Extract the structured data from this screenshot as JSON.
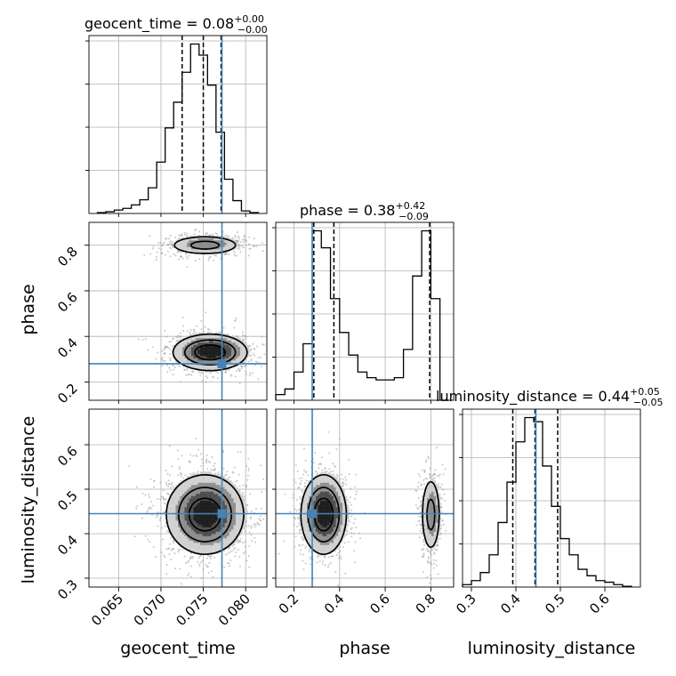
{
  "axis_labels": {
    "geocent_time": "geocent_time",
    "phase": "phase",
    "luminosity_distance": "luminosity_distance"
  },
  "panel_titles": [
    {
      "text": "geocent_time = ",
      "value": "0.08",
      "plus": "+0.00",
      "minus": "−0.00"
    },
    {
      "text": "phase = ",
      "value": "0.38",
      "plus": "+0.42",
      "minus": "−0.09"
    },
    {
      "text": "luminosity_distance = ",
      "value": "0.44",
      "plus": "+0.05",
      "minus": "−0.05"
    }
  ],
  "colors": {
    "truth": "#4682b4",
    "hist": "#000000",
    "contour": "#000000",
    "grid": "#b0b0b0"
  },
  "chart_data": {
    "type": "corner",
    "parameters": [
      "geocent_time",
      "phase",
      "luminosity_distance"
    ],
    "ranges": {
      "geocent_time": [
        0.0615,
        0.0825
      ],
      "phase": [
        0.12,
        0.9
      ],
      "luminosity_distance": [
        0.28,
        0.68
      ]
    },
    "ticks": {
      "geocent_time": [
        0.065,
        0.07,
        0.075,
        0.08
      ],
      "phase": [
        0.2,
        0.4,
        0.6,
        0.8
      ],
      "luminosity_distance": [
        0.3,
        0.4,
        0.5,
        0.6
      ]
    },
    "tick_labels": {
      "geocent_time": [
        "0.065",
        "0.070",
        "0.075",
        "0.080"
      ],
      "phase": [
        "0.2",
        "0.4",
        "0.6",
        "0.8"
      ],
      "luminosity_distance": [
        "0.3",
        "0.4",
        "0.5",
        "0.6"
      ]
    },
    "truths": {
      "geocent_time": 0.0772,
      "phase": 0.28,
      "luminosity_distance": 0.445
    },
    "quantiles": {
      "geocent_time": [
        0.0725,
        0.075,
        0.0771
      ],
      "phase": [
        0.287,
        0.375,
        0.795
      ],
      "luminosity_distance": [
        0.393,
        0.443,
        0.494
      ]
    },
    "histograms": {
      "geocent_time": {
        "edges": [
          0.0625,
          0.0635,
          0.0645,
          0.0655,
          0.0665,
          0.0675,
          0.0685,
          0.0695,
          0.0705,
          0.0715,
          0.0725,
          0.0735,
          0.0745,
          0.0755,
          0.0765,
          0.0775,
          0.0785,
          0.0795,
          0.0805,
          0.0815
        ],
        "counts": [
          1,
          2,
          4,
          6,
          10,
          16,
          30,
          60,
          100,
          130,
          165,
          198,
          185,
          150,
          95,
          40,
          15,
          3,
          1
        ]
      },
      "phase": {
        "edges": [
          0.12,
          0.16,
          0.2,
          0.24,
          0.28,
          0.32,
          0.36,
          0.4,
          0.44,
          0.48,
          0.52,
          0.56,
          0.6,
          0.64,
          0.68,
          0.72,
          0.76,
          0.8,
          0.84,
          0.88
        ],
        "counts": [
          5,
          10,
          25,
          50,
          150,
          135,
          90,
          60,
          40,
          25,
          20,
          18,
          18,
          20,
          45,
          110,
          150,
          90,
          0
        ]
      },
      "luminosity_distance": {
        "edges": [
          0.28,
          0.3,
          0.32,
          0.34,
          0.36,
          0.38,
          0.4,
          0.42,
          0.44,
          0.46,
          0.48,
          0.5,
          0.52,
          0.54,
          0.56,
          0.58,
          0.6,
          0.62,
          0.64,
          0.66
        ],
        "counts": [
          3,
          8,
          18,
          40,
          80,
          130,
          180,
          210,
          205,
          150,
          100,
          60,
          40,
          22,
          14,
          8,
          6,
          3,
          1
        ]
      }
    },
    "panels_2d": [
      {
        "x": "geocent_time",
        "y": "phase",
        "modes": [
          {
            "x": 0.0752,
            "y": 0.8,
            "sx": 0.0022,
            "sy": 0.022,
            "weight": 0.35
          },
          {
            "x": 0.0758,
            "y": 0.33,
            "sx": 0.0022,
            "sy": 0.04,
            "weight": 0.65
          }
        ],
        "contour_levels": 3
      },
      {
        "x": "geocent_time",
        "y": "luminosity_distance",
        "modes": [
          {
            "x": 0.0752,
            "y": 0.443,
            "sx": 0.0023,
            "sy": 0.045,
            "weight": 1.0
          }
        ],
        "contour_levels": 3
      },
      {
        "x": "phase",
        "y": "luminosity_distance",
        "modes": [
          {
            "x": 0.33,
            "y": 0.443,
            "sx": 0.05,
            "sy": 0.045,
            "weight": 0.65
          },
          {
            "x": 0.8,
            "y": 0.443,
            "sx": 0.022,
            "sy": 0.045,
            "weight": 0.35
          }
        ],
        "contour_levels": 3
      }
    ]
  }
}
